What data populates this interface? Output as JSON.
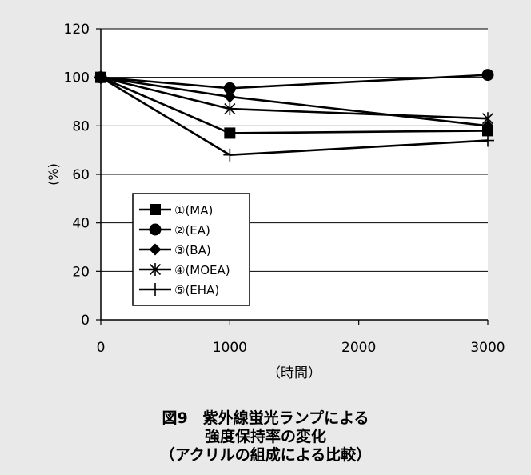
{
  "chart_data": {
    "type": "line",
    "ylabel": "(%)",
    "xlabel": "（時間）",
    "xlim": [
      0,
      3000
    ],
    "ylim": [
      0,
      120
    ],
    "xticks": [
      0,
      1000,
      2000,
      3000
    ],
    "yticks": [
      0,
      20,
      40,
      60,
      80,
      100,
      120
    ],
    "grid": "horizontal",
    "legend_position": "lower-left",
    "series": [
      {
        "name": "①(MA)",
        "marker": "square",
        "x": [
          0,
          1000,
          3000
        ],
        "y": [
          100,
          77,
          78
        ]
      },
      {
        "name": "②(EA)",
        "marker": "circle",
        "x": [
          0,
          1000,
          3000
        ],
        "y": [
          100,
          95.5,
          101
        ]
      },
      {
        "name": "③(BA)",
        "marker": "diamond",
        "x": [
          0,
          1000,
          3000
        ],
        "y": [
          100,
          92,
          80
        ]
      },
      {
        "name": "④(MOEA)",
        "marker": "asterisk",
        "x": [
          0,
          1000,
          3000
        ],
        "y": [
          100,
          87,
          83
        ]
      },
      {
        "name": "⑤(EHA)",
        "marker": "plus",
        "x": [
          0,
          1000,
          3000
        ],
        "y": [
          100,
          68,
          74
        ]
      }
    ]
  },
  "caption": {
    "line1": "図9　紫外線蛍光ランプによる",
    "line2": "強度保持率の変化",
    "line3": "（アクリルの組成による比較）"
  }
}
